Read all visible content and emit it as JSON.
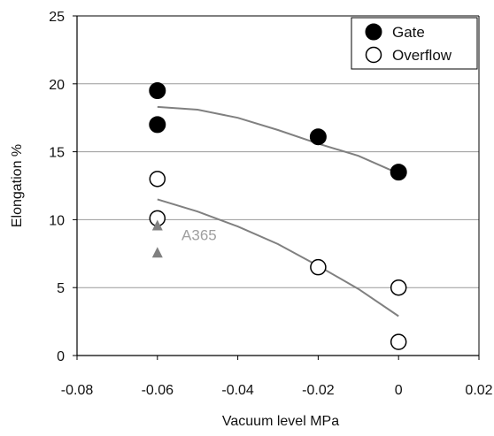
{
  "chart_data": {
    "type": "scatter",
    "xlabel": "Vacuum level  MPa",
    "ylabel": "Elongation %",
    "xlim": [
      -0.08,
      0.02
    ],
    "ylim": [
      0,
      25
    ],
    "x_ticks": [
      -0.08,
      -0.06,
      -0.04,
      -0.02,
      0,
      0.02
    ],
    "x_tick_labels": [
      "-0.08",
      "-0.06",
      "-0.04",
      "-0.02",
      "0",
      "0.02"
    ],
    "y_ticks": [
      0,
      5,
      10,
      15,
      20,
      25
    ],
    "y_tick_labels": [
      "0",
      "5",
      "10",
      "15",
      "20",
      "25"
    ],
    "grid": "horizontal",
    "legend_position": "top-right",
    "series": [
      {
        "name": "Gate",
        "marker": "filled-circle",
        "color": "#000000",
        "points": [
          {
            "x": -0.06,
            "y": 19.5
          },
          {
            "x": -0.06,
            "y": 17.0
          },
          {
            "x": -0.02,
            "y": 16.1
          },
          {
            "x": 0.0,
            "y": 13.5
          }
        ]
      },
      {
        "name": "Overflow",
        "marker": "open-circle",
        "color": "#000000",
        "points": [
          {
            "x": -0.06,
            "y": 13.0
          },
          {
            "x": -0.06,
            "y": 10.1
          },
          {
            "x": -0.02,
            "y": 6.5
          },
          {
            "x": 0.0,
            "y": 5.0
          },
          {
            "x": 0.0,
            "y": 1.0
          }
        ]
      },
      {
        "marker": "triangle",
        "color": "#808080",
        "points": [
          {
            "x": -0.06,
            "y": 9.6
          },
          {
            "x": -0.06,
            "y": 7.6
          }
        ]
      }
    ],
    "trend_lines": [
      {
        "color": "#808080",
        "points": [
          [
            -0.06,
            18.3
          ],
          [
            -0.05,
            18.1
          ],
          [
            -0.04,
            17.5
          ],
          [
            -0.03,
            16.6
          ],
          [
            -0.02,
            15.6
          ],
          [
            -0.01,
            14.7
          ],
          [
            0.0,
            13.4
          ]
        ]
      },
      {
        "color": "#808080",
        "points": [
          [
            -0.06,
            11.5
          ],
          [
            -0.05,
            10.6
          ],
          [
            -0.04,
            9.5
          ],
          [
            -0.03,
            8.2
          ],
          [
            -0.02,
            6.6
          ],
          [
            -0.01,
            4.9
          ],
          [
            0.0,
            2.9
          ]
        ]
      }
    ],
    "annotations": [
      {
        "text": "A365",
        "x": -0.054,
        "y": 8.5,
        "color": "#a0a0a0"
      }
    ]
  }
}
